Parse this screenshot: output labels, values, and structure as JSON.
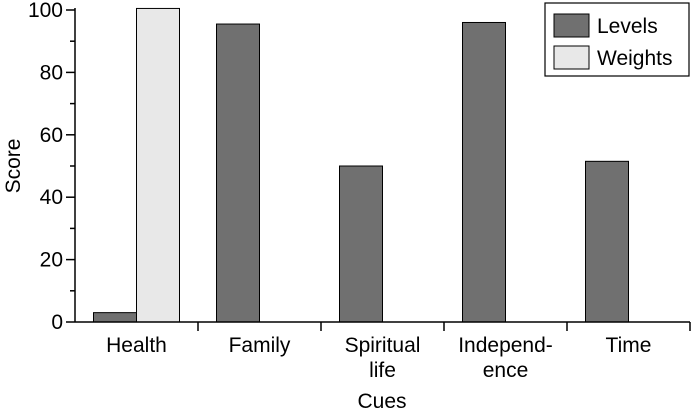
{
  "chart_data": {
    "type": "bar",
    "categories": [
      [
        "Health"
      ],
      [
        "Family"
      ],
      [
        "Spiritual",
        "life"
      ],
      [
        "Independ-",
        "ence"
      ],
      [
        "Time"
      ]
    ],
    "series": [
      {
        "name": "Levels",
        "values": [
          3,
          95.5,
          50,
          96,
          51.5
        ],
        "color": "#707070"
      },
      {
        "name": "Weights",
        "values": [
          100.5,
          0,
          0,
          0,
          0
        ],
        "color": "#e8e8e8"
      }
    ],
    "xlabel": "Cues",
    "ylabel": "Score",
    "ylim": [
      0,
      100
    ],
    "yticks": [
      0,
      20,
      40,
      60,
      80,
      100
    ],
    "legend_position": "top-right",
    "grid": false
  }
}
